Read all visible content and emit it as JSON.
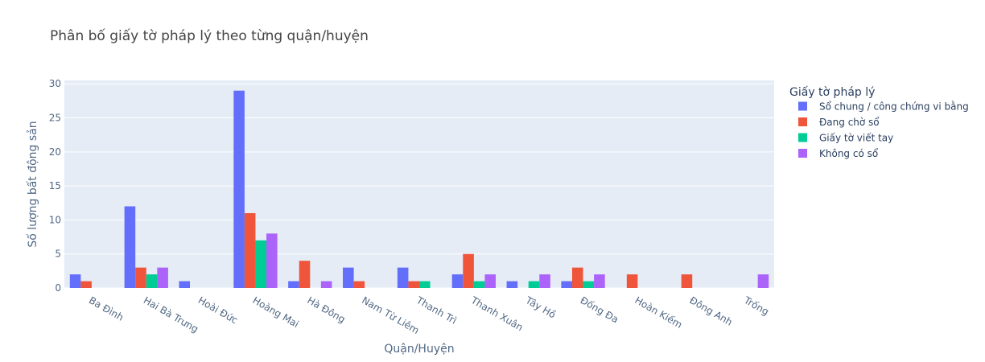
{
  "chart_data": {
    "type": "bar",
    "title": "Phân bố giấy tờ pháp lý theo từng quận/huyện",
    "xlabel": "Quận/Huyện",
    "ylabel": "Số lượng bất động sản",
    "ylim": [
      0,
      30.5
    ],
    "yticks": [
      0,
      5,
      10,
      15,
      20,
      25,
      30
    ],
    "grid": true,
    "legend_title": "Giấy tờ pháp lý",
    "legend_position": "right",
    "categories": [
      "Ba Đình",
      "Hai Bà Trưng",
      "Hoài Đức",
      "Hoàng Mai",
      "Hà Đông",
      "Nam Từ Liêm",
      "Thanh Trì",
      "Thanh Xuân",
      "Tây Hồ",
      "Đống Đa",
      "Hoàn Kiếm",
      "Đông Anh",
      "Trống"
    ],
    "series": [
      {
        "name": "Sổ chung / công chứng vi bằng",
        "color": "#636efa",
        "values": [
          2,
          12,
          1,
          29,
          1,
          3,
          3,
          2,
          1,
          1,
          0,
          0,
          0
        ]
      },
      {
        "name": "Đang chờ sổ",
        "color": "#ef553b",
        "values": [
          1,
          3,
          0,
          11,
          4,
          1,
          1,
          5,
          0,
          3,
          2,
          2,
          0
        ]
      },
      {
        "name": "Giấy tờ viết tay",
        "color": "#00cc96",
        "values": [
          0,
          2,
          0,
          7,
          0,
          0,
          1,
          1,
          1,
          1,
          0,
          0,
          0
        ]
      },
      {
        "name": "Không có sổ",
        "color": "#ab63fa",
        "values": [
          0,
          3,
          0,
          8,
          1,
          0,
          0,
          2,
          2,
          2,
          0,
          0,
          2
        ]
      }
    ]
  }
}
